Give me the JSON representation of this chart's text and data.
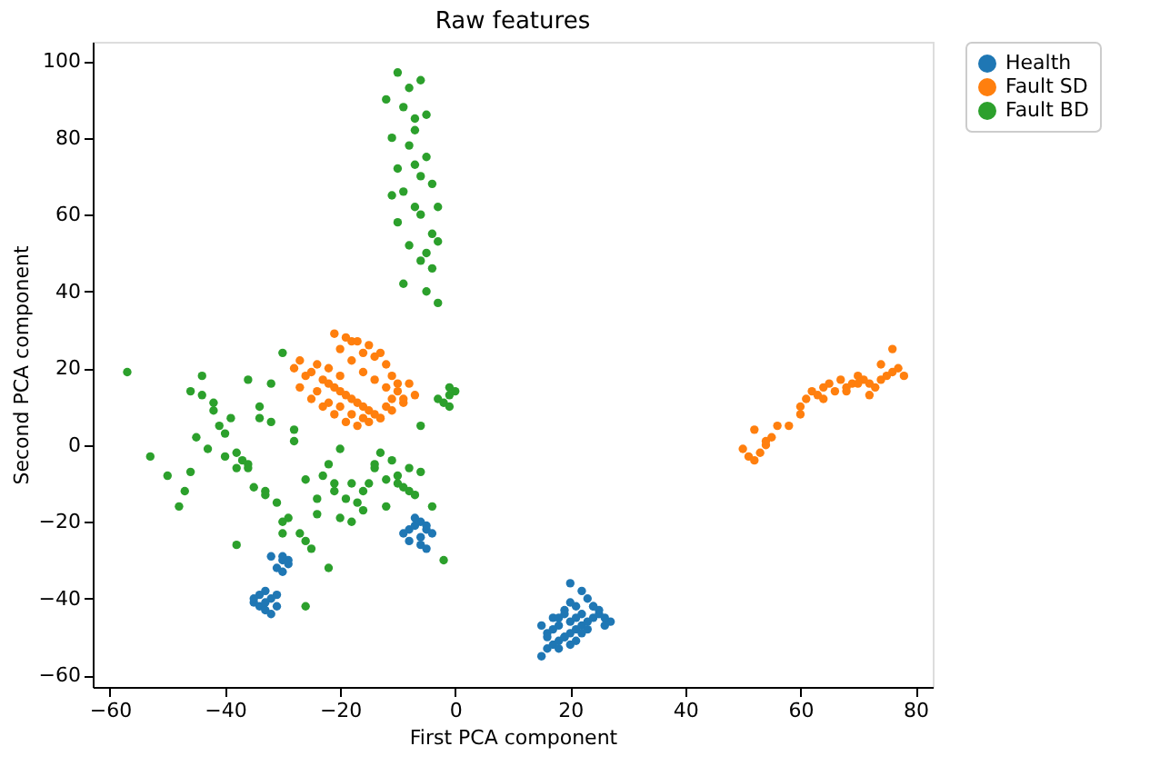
{
  "chart_data": {
    "type": "scatter",
    "title": "Raw features",
    "xlabel": "First PCA component",
    "ylabel": "Second PCA component",
    "xlim": [
      -63,
      83
    ],
    "ylim": [
      -63,
      105
    ],
    "xticks": [
      -60,
      -40,
      -20,
      0,
      20,
      40,
      60,
      80
    ],
    "yticks": [
      -60,
      -40,
      -20,
      0,
      20,
      40,
      60,
      80,
      100
    ],
    "grid": false,
    "legend": "top right",
    "marker": "circle",
    "series": [
      {
        "name": "Health",
        "color": "#1f77b4",
        "x": [
          15,
          16,
          17,
          18,
          19,
          20,
          21,
          22,
          23,
          24,
          25,
          26,
          27,
          16,
          18,
          20,
          22,
          24,
          17,
          19,
          21,
          23,
          15,
          17,
          19,
          21,
          18,
          20,
          22,
          19,
          21,
          23,
          25,
          20,
          18,
          16,
          22,
          24,
          26,
          20,
          -35,
          -34,
          -33,
          -32,
          -34,
          -33,
          -32,
          -31,
          -35,
          -33,
          -31,
          -30,
          -29,
          -32,
          -30,
          -31,
          -29,
          -30,
          -8,
          -7,
          -6,
          -5,
          -4,
          -8,
          -6,
          -5,
          -7,
          -6,
          -9,
          -5
        ],
        "values": [
          -55,
          -53,
          -52,
          -51,
          -50,
          -49,
          -48,
          -47,
          -46,
          -45,
          -44,
          -47,
          -46,
          -49,
          -47,
          -46,
          -44,
          -42,
          -45,
          -43,
          -42,
          -40,
          -47,
          -48,
          -50,
          -51,
          -53,
          -52,
          -49,
          -44,
          -45,
          -48,
          -43,
          -41,
          -45,
          -50,
          -38,
          -42,
          -45,
          -36,
          -41,
          -42,
          -43,
          -40,
          -39,
          -38,
          -44,
          -42,
          -40,
          -41,
          -39,
          -30,
          -31,
          -29,
          -33,
          -32,
          -30,
          -29,
          -22,
          -21,
          -20,
          -22,
          -23,
          -25,
          -26,
          -27,
          -19,
          -24,
          -23,
          -21
        ]
      },
      {
        "name": "Fault SD",
        "color": "#ff7f0e",
        "x": [
          -28,
          -27,
          -26,
          -25,
          -24,
          -23,
          -22,
          -21,
          -20,
          -19,
          -18,
          -17,
          -16,
          -15,
          -14,
          -13,
          -12,
          -11,
          -10,
          -9,
          -8,
          -7,
          -27,
          -25,
          -23,
          -21,
          -19,
          -17,
          -15,
          -13,
          -11,
          -9,
          -22,
          -20,
          -18,
          -16,
          -14,
          -12,
          -10,
          -20,
          -18,
          -16,
          -14,
          -12,
          -24,
          -22,
          -20,
          -18,
          -16,
          -21,
          -19,
          -17,
          -15,
          -13,
          -11,
          50,
          51,
          52,
          53,
          54,
          55,
          56,
          52,
          54,
          58,
          60,
          61,
          62,
          63,
          64,
          65,
          66,
          67,
          68,
          69,
          70,
          71,
          72,
          73,
          74,
          75,
          76,
          77,
          78,
          60,
          64,
          68,
          72,
          76,
          70,
          74
        ],
        "values": [
          20,
          22,
          18,
          19,
          21,
          17,
          16,
          15,
          14,
          13,
          12,
          11,
          10,
          9,
          8,
          7,
          10,
          12,
          14,
          11,
          16,
          13,
          15,
          12,
          10,
          8,
          6,
          5,
          6,
          7,
          9,
          12,
          20,
          18,
          22,
          19,
          17,
          15,
          16,
          25,
          27,
          24,
          23,
          21,
          14,
          11,
          10,
          8,
          7,
          29,
          28,
          27,
          26,
          24,
          18,
          -1,
          -3,
          -4,
          -2,
          0,
          2,
          5,
          4,
          1,
          5,
          10,
          12,
          14,
          13,
          15,
          16,
          14,
          17,
          15,
          16,
          18,
          17,
          16,
          15,
          17,
          18,
          19,
          20,
          18,
          8,
          12,
          14,
          13,
          25,
          16,
          21
        ]
      },
      {
        "name": "Fault BD",
        "color": "#2ca02c",
        "x": [
          -10,
          -8,
          -6,
          -12,
          -9,
          -7,
          -5,
          -11,
          -8,
          -6,
          -4,
          -10,
          -7,
          -5,
          -3,
          -9,
          -6,
          -4,
          -10,
          -7,
          -5,
          -3,
          -8,
          -6,
          -4,
          -9,
          -5,
          -3,
          -11,
          -7,
          -57,
          -53,
          -50,
          -48,
          -46,
          -44,
          -42,
          -40,
          -38,
          -36,
          -34,
          -32,
          -30,
          -28,
          -26,
          -24,
          -22,
          -20,
          -18,
          -16,
          -14,
          -12,
          -10,
          -8,
          -6,
          -4,
          -45,
          -43,
          -41,
          -39,
          -37,
          -35,
          -33,
          -31,
          -29,
          -27,
          -25,
          -23,
          -21,
          -19,
          -17,
          -15,
          -13,
          -11,
          -9,
          -7,
          -47,
          -44,
          -40,
          -36,
          -32,
          -28,
          -24,
          -20,
          -16,
          -12,
          -8,
          -42,
          -38,
          -34,
          -30,
          -26,
          -22,
          -18,
          -14,
          -10,
          -6,
          -46,
          -38,
          -30,
          -26,
          -21,
          -33,
          -36,
          -2,
          -1,
          0,
          -3,
          -2,
          -1,
          -1
        ],
        "values": [
          97,
          93,
          95,
          90,
          88,
          85,
          86,
          80,
          78,
          70,
          68,
          72,
          73,
          75,
          62,
          66,
          60,
          55,
          58,
          62,
          50,
          53,
          52,
          48,
          46,
          42,
          40,
          37,
          65,
          82,
          19,
          -3,
          -8,
          -16,
          14,
          18,
          9,
          3,
          -2,
          -5,
          10,
          16,
          24,
          4,
          -9,
          -18,
          -5,
          -1,
          -10,
          -12,
          -6,
          -16,
          -8,
          -12,
          -7,
          -16,
          2,
          -1,
          5,
          7,
          -4,
          -11,
          -13,
          -15,
          -19,
          -23,
          -27,
          -8,
          -10,
          -14,
          -15,
          -10,
          -2,
          -4,
          -11,
          -13,
          -12,
          13,
          -3,
          -6,
          6,
          1,
          -14,
          -19,
          -17,
          -9,
          -6,
          11,
          -6,
          7,
          -20,
          -25,
          -32,
          -20,
          -5,
          -10,
          5,
          -7,
          -26,
          -23,
          -42,
          -12,
          -12,
          17,
          -30,
          15,
          14,
          12,
          11,
          10,
          13
        ]
      }
    ]
  }
}
